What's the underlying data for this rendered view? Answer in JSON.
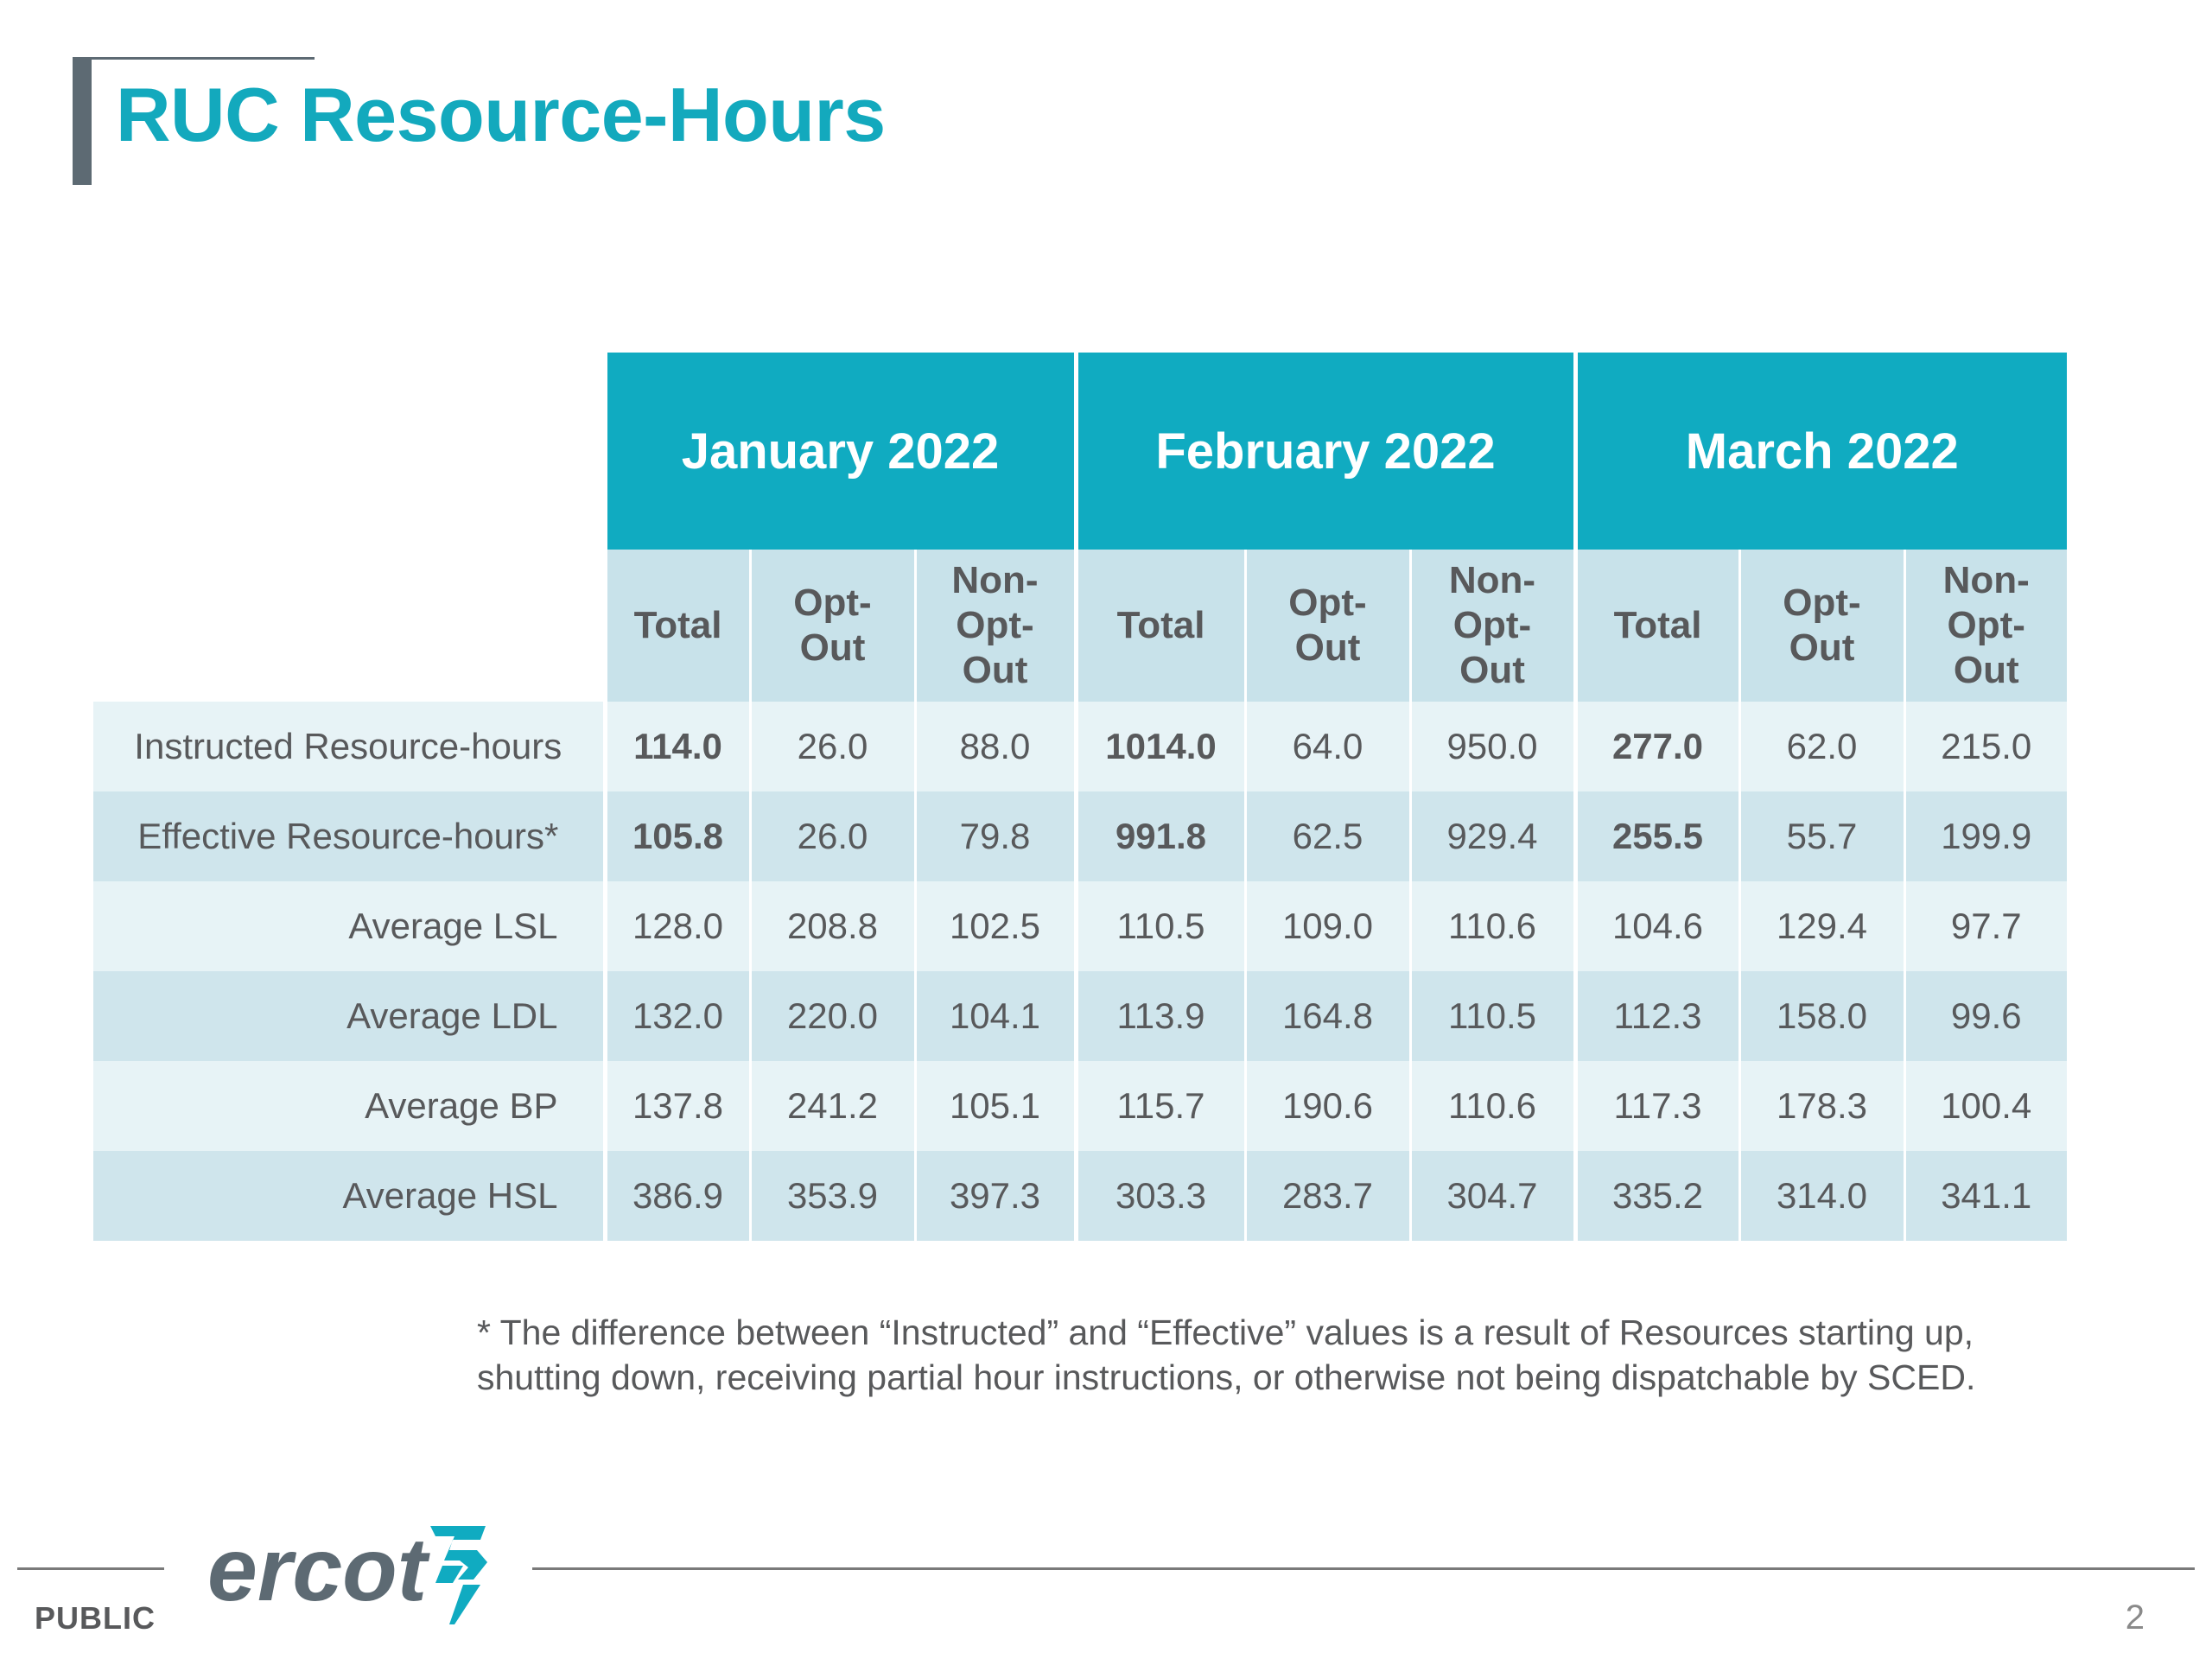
{
  "slide": {
    "title": "RUC Resource-Hours",
    "footnote_line1": "* The difference between “Instructed” and “Effective” values is a result of Resources starting up,",
    "footnote_line2": "shutting down, receiving partial hour instructions, or otherwise not being dispatchable by SCED.",
    "footer_label": "PUBLIC",
    "logo_text": "ercot",
    "page_number": "2"
  },
  "table": {
    "months": [
      "January 2022",
      "February 2022",
      "March 2022"
    ],
    "subheaders": [
      [
        "Total"
      ],
      [
        "Opt-",
        "Out"
      ],
      [
        "Non-",
        "Opt-",
        "Out"
      ]
    ],
    "rows": [
      {
        "label": "Instructed Resource-hours",
        "values": [
          "114.0",
          "26.0",
          "88.0",
          "1014.0",
          "64.0",
          "950.0",
          "277.0",
          "62.0",
          "215.0"
        ]
      },
      {
        "label": "Effective Resource-hours*",
        "values": [
          "105.8",
          "26.0",
          "79.8",
          "991.8",
          "62.5",
          "929.4",
          "255.5",
          "55.7",
          "199.9"
        ]
      },
      {
        "label": "Average LSL",
        "values": [
          "128.0",
          "208.8",
          "102.5",
          "110.5",
          "109.0",
          "110.6",
          "104.6",
          "129.4",
          "97.7"
        ]
      },
      {
        "label": "Average LDL",
        "values": [
          "132.0",
          "220.0",
          "104.1",
          "113.9",
          "164.8",
          "110.5",
          "112.3",
          "158.0",
          "99.6"
        ]
      },
      {
        "label": "Average BP",
        "values": [
          "137.8",
          "241.2",
          "105.1",
          "115.7",
          "190.6",
          "110.6",
          "117.3",
          "178.3",
          "100.4"
        ]
      },
      {
        "label": "Average HSL",
        "values": [
          "386.9",
          "353.9",
          "397.3",
          "303.3",
          "283.7",
          "304.7",
          "335.2",
          "314.0",
          "341.1"
        ]
      }
    ]
  },
  "colors": {
    "title": "#13a9bd",
    "month_header": "#10abc1",
    "subheader": "#c8e2ea",
    "row_light": "#e7f3f6",
    "row_dark": "#cfe5ec",
    "logo": "#5d6a73",
    "logo_mark": "#10abc1"
  },
  "icons": {
    "logo_mark": "lightning-bolt-icon"
  }
}
